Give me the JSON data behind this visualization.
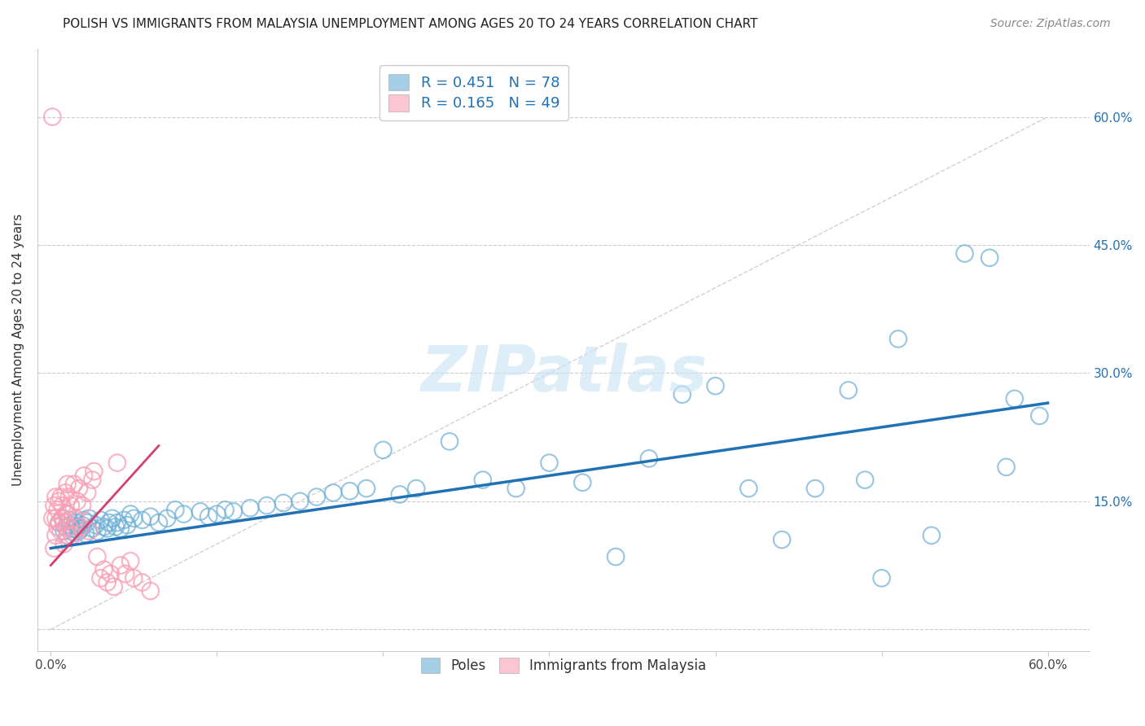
{
  "title": "POLISH VS IMMIGRANTS FROM MALAYSIA UNEMPLOYMENT AMONG AGES 20 TO 24 YEARS CORRELATION CHART",
  "source": "Source: ZipAtlas.com",
  "ylabel": "Unemployment Among Ages 20 to 24 years",
  "xlim": [
    0,
    0.6
  ],
  "ylim": [
    0,
    0.65
  ],
  "yticks": [
    0.0,
    0.15,
    0.3,
    0.45,
    0.6
  ],
  "ytick_labels_right": [
    "",
    "15.0%",
    "30.0%",
    "45.0%",
    "60.0%"
  ],
  "xticks": [
    0.0,
    0.1,
    0.2,
    0.3,
    0.4,
    0.5,
    0.6
  ],
  "xtick_labels": [
    "0.0%",
    "",
    "",
    "",
    "",
    "",
    "60.0%"
  ],
  "grid_color": "#cccccc",
  "background_color": "#ffffff",
  "blue_color": "#6baed6",
  "pink_color": "#fa9fb5",
  "blue_line_color": "#2171b5",
  "pink_line_color": "#d44070",
  "legend_R_blue": "R = 0.451",
  "legend_N_blue": "N = 78",
  "legend_R_pink": "R = 0.165",
  "legend_N_pink": "N = 49",
  "legend_label_blue": "Poles",
  "legend_label_pink": "Immigrants from Malaysia",
  "watermark": "ZIPatlas",
  "poles_x": [
    0.005,
    0.007,
    0.008,
    0.009,
    0.01,
    0.01,
    0.011,
    0.012,
    0.013,
    0.014,
    0.015,
    0.016,
    0.017,
    0.018,
    0.019,
    0.02,
    0.021,
    0.022,
    0.023,
    0.025,
    0.027,
    0.028,
    0.03,
    0.032,
    0.034,
    0.035,
    0.037,
    0.039,
    0.04,
    0.042,
    0.044,
    0.046,
    0.048,
    0.05,
    0.055,
    0.06,
    0.065,
    0.07,
    0.075,
    0.08,
    0.09,
    0.095,
    0.1,
    0.105,
    0.11,
    0.12,
    0.13,
    0.14,
    0.15,
    0.16,
    0.17,
    0.18,
    0.19,
    0.2,
    0.21,
    0.22,
    0.24,
    0.26,
    0.28,
    0.3,
    0.32,
    0.34,
    0.36,
    0.38,
    0.4,
    0.42,
    0.44,
    0.46,
    0.48,
    0.49,
    0.5,
    0.51,
    0.53,
    0.55,
    0.565,
    0.575,
    0.58,
    0.595
  ],
  "poles_y": [
    0.125,
    0.13,
    0.115,
    0.12,
    0.11,
    0.135,
    0.128,
    0.122,
    0.118,
    0.113,
    0.125,
    0.12,
    0.115,
    0.118,
    0.122,
    0.128,
    0.112,
    0.125,
    0.13,
    0.118,
    0.122,
    0.115,
    0.128,
    0.12,
    0.118,
    0.125,
    0.13,
    0.12,
    0.125,
    0.118,
    0.128,
    0.122,
    0.135,
    0.13,
    0.128,
    0.132,
    0.125,
    0.13,
    0.14,
    0.135,
    0.138,
    0.132,
    0.135,
    0.14,
    0.138,
    0.142,
    0.145,
    0.148,
    0.15,
    0.155,
    0.16,
    0.162,
    0.165,
    0.21,
    0.158,
    0.165,
    0.22,
    0.175,
    0.165,
    0.195,
    0.172,
    0.085,
    0.2,
    0.275,
    0.285,
    0.165,
    0.105,
    0.165,
    0.28,
    0.175,
    0.06,
    0.34,
    0.11,
    0.44,
    0.435,
    0.19,
    0.27,
    0.25
  ],
  "malaysia_x": [
    0.001,
    0.002,
    0.002,
    0.003,
    0.003,
    0.003,
    0.004,
    0.004,
    0.005,
    0.005,
    0.006,
    0.006,
    0.007,
    0.007,
    0.008,
    0.008,
    0.009,
    0.009,
    0.01,
    0.01,
    0.011,
    0.011,
    0.012,
    0.013,
    0.014,
    0.015,
    0.016,
    0.017,
    0.018,
    0.019,
    0.02,
    0.022,
    0.023,
    0.025,
    0.026,
    0.028,
    0.03,
    0.032,
    0.034,
    0.036,
    0.038,
    0.04,
    0.042,
    0.045,
    0.048,
    0.05,
    0.055,
    0.06,
    0.001
  ],
  "malaysia_y": [
    0.13,
    0.145,
    0.095,
    0.155,
    0.13,
    0.11,
    0.14,
    0.12,
    0.15,
    0.125,
    0.155,
    0.115,
    0.13,
    0.145,
    0.125,
    0.1,
    0.16,
    0.135,
    0.11,
    0.17,
    0.12,
    0.155,
    0.145,
    0.11,
    0.17,
    0.13,
    0.15,
    0.165,
    0.12,
    0.145,
    0.18,
    0.16,
    0.115,
    0.175,
    0.185,
    0.085,
    0.06,
    0.07,
    0.055,
    0.065,
    0.05,
    0.195,
    0.075,
    0.065,
    0.08,
    0.06,
    0.055,
    0.045,
    0.6
  ],
  "blue_line_x": [
    0.0,
    0.6
  ],
  "blue_line_y": [
    0.095,
    0.265
  ],
  "pink_line_x": [
    0.0,
    0.065
  ],
  "pink_line_y": [
    0.075,
    0.215
  ],
  "diag_line_x": [
    0.0,
    0.6
  ],
  "diag_line_y": [
    0.0,
    0.6
  ]
}
